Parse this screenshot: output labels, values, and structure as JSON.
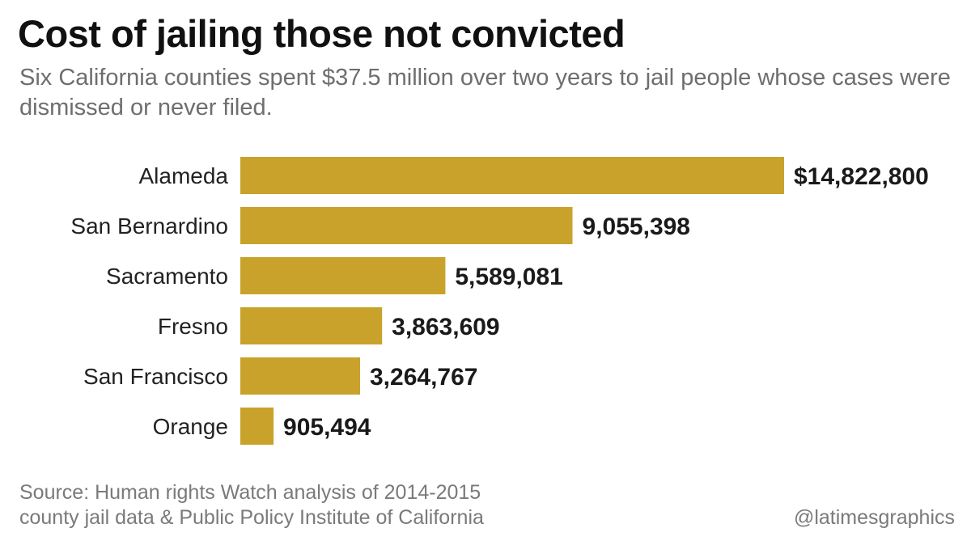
{
  "header": {
    "title": "Cost of jailing those not convicted",
    "subtitle": "Six California counties spent $37.5 million over two years to jail people whose cases were dismissed or never filed."
  },
  "chart_data": {
    "type": "bar",
    "orientation": "horizontal",
    "categories": [
      "Alameda",
      "San Bernardino",
      "Sacramento",
      "Fresno",
      "San Francisco",
      "Orange"
    ],
    "values": [
      14822800,
      9055398,
      5589081,
      3863609,
      3264767,
      905494
    ],
    "value_labels": [
      "$14,822,800",
      "9,055,398",
      "5,589,081",
      "3,863,609",
      "3,264,767",
      "905,494"
    ],
    "title": "Cost of jailing those not convicted",
    "xlabel": "",
    "ylabel": "",
    "grid": false,
    "bar_color": "#c9a22b"
  },
  "footer": {
    "source_line1": "Source: Human rights Watch analysis of 2014-2015",
    "source_line2": "county jail data & Public Policy Institute of California",
    "credit": "@latimesgraphics"
  }
}
